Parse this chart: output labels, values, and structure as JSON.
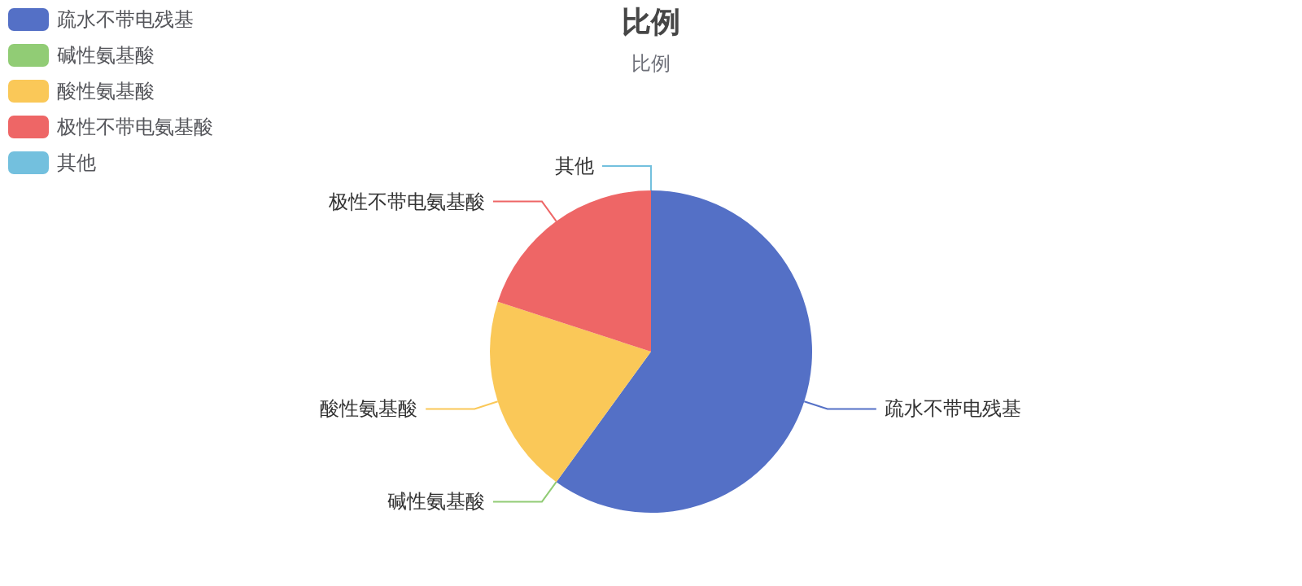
{
  "chart_data": {
    "type": "pie",
    "title": "比例",
    "subtitle": "比例",
    "categories": [
      "疏水不带电残基",
      "碱性氨基酸",
      "酸性氨基酸",
      "极性不带电氨基酸",
      "其他"
    ],
    "values": [
      60,
      0,
      20,
      20,
      0
    ],
    "colors": [
      "#5470c6",
      "#91cc75",
      "#fac858",
      "#ee6666",
      "#73c0de"
    ],
    "legend": "top left"
  }
}
